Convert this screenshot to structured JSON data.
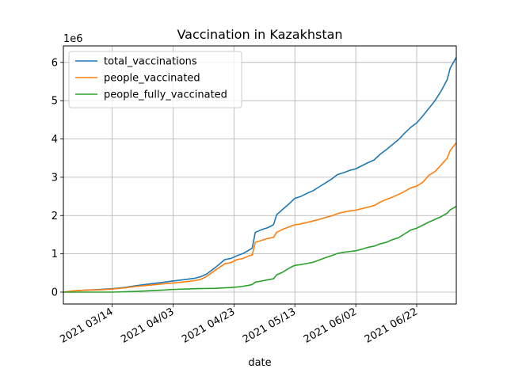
{
  "chart_data": {
    "type": "line",
    "title": "Vaccination in Kazakhstan",
    "xlabel": "date",
    "ylabel": "",
    "y_multiplier": "1e6",
    "x_tick_labels": [
      "2021 03/14",
      "2021 04/03",
      "2021 04/23",
      "2021 05/13",
      "2021 06/02",
      "2021 06/22"
    ],
    "x_ticks": [
      "2021-03-14",
      "2021-04-03",
      "2021-04-23",
      "2021-05-13",
      "2021-06-02",
      "2021-06-22"
    ],
    "xlim": [
      "2021-02-26",
      "2021-07-05"
    ],
    "y_ticks": [
      0,
      1,
      2,
      3,
      4,
      5,
      6
    ],
    "ylim": [
      -0.31,
      6.43
    ],
    "grid": true,
    "legend_position": "upper-left",
    "series": [
      {
        "name": "total_vaccinations",
        "color": "#1f77b4",
        "points": [
          [
            "2021-02-26",
            0.0
          ],
          [
            "2021-03-01",
            0.03
          ],
          [
            "2021-03-05",
            0.05
          ],
          [
            "2021-03-10",
            0.07
          ],
          [
            "2021-03-14",
            0.09
          ],
          [
            "2021-03-18",
            0.12
          ],
          [
            "2021-03-22",
            0.17
          ],
          [
            "2021-03-26",
            0.21
          ],
          [
            "2021-03-30",
            0.25
          ],
          [
            "2021-04-03",
            0.29
          ],
          [
            "2021-04-07",
            0.33
          ],
          [
            "2021-04-10",
            0.36
          ],
          [
            "2021-04-12",
            0.4
          ],
          [
            "2021-04-14",
            0.47
          ],
          [
            "2021-04-17",
            0.65
          ],
          [
            "2021-04-20",
            0.85
          ],
          [
            "2021-04-22",
            0.88
          ],
          [
            "2021-04-24",
            0.95
          ],
          [
            "2021-04-26",
            1.01
          ],
          [
            "2021-04-28",
            1.1
          ],
          [
            "2021-04-29",
            1.15
          ],
          [
            "2021-04-30",
            1.56
          ],
          [
            "2021-05-02",
            1.63
          ],
          [
            "2021-05-04",
            1.68
          ],
          [
            "2021-05-06",
            1.76
          ],
          [
            "2021-05-07",
            2.02
          ],
          [
            "2021-05-09",
            2.16
          ],
          [
            "2021-05-11",
            2.3
          ],
          [
            "2021-05-13",
            2.45
          ],
          [
            "2021-05-15",
            2.5
          ],
          [
            "2021-05-17",
            2.58
          ],
          [
            "2021-05-19",
            2.65
          ],
          [
            "2021-05-21",
            2.75
          ],
          [
            "2021-05-23",
            2.85
          ],
          [
            "2021-05-25",
            2.95
          ],
          [
            "2021-05-27",
            3.07
          ],
          [
            "2021-05-29",
            3.12
          ],
          [
            "2021-05-31",
            3.18
          ],
          [
            "2021-06-02",
            3.22
          ],
          [
            "2021-06-04",
            3.3
          ],
          [
            "2021-06-06",
            3.38
          ],
          [
            "2021-06-08",
            3.45
          ],
          [
            "2021-06-10",
            3.6
          ],
          [
            "2021-06-12",
            3.72
          ],
          [
            "2021-06-14",
            3.85
          ],
          [
            "2021-06-16",
            3.98
          ],
          [
            "2021-06-18",
            4.15
          ],
          [
            "2021-06-20",
            4.3
          ],
          [
            "2021-06-22",
            4.42
          ],
          [
            "2021-06-24",
            4.6
          ],
          [
            "2021-06-26",
            4.8
          ],
          [
            "2021-06-28",
            5.0
          ],
          [
            "2021-06-30",
            5.25
          ],
          [
            "2021-07-02",
            5.55
          ],
          [
            "2021-07-03",
            5.85
          ],
          [
            "2021-07-05",
            6.13
          ]
        ]
      },
      {
        "name": "people_vaccinated",
        "color": "#ff7f0e",
        "points": [
          [
            "2021-02-26",
            0.0
          ],
          [
            "2021-03-01",
            0.03
          ],
          [
            "2021-03-05",
            0.05
          ],
          [
            "2021-03-10",
            0.06
          ],
          [
            "2021-03-14",
            0.08
          ],
          [
            "2021-03-18",
            0.11
          ],
          [
            "2021-03-22",
            0.15
          ],
          [
            "2021-03-26",
            0.18
          ],
          [
            "2021-03-30",
            0.21
          ],
          [
            "2021-04-03",
            0.24
          ],
          [
            "2021-04-07",
            0.27
          ],
          [
            "2021-04-10",
            0.3
          ],
          [
            "2021-04-12",
            0.33
          ],
          [
            "2021-04-14",
            0.41
          ],
          [
            "2021-04-17",
            0.58
          ],
          [
            "2021-04-20",
            0.74
          ],
          [
            "2021-04-22",
            0.77
          ],
          [
            "2021-04-24",
            0.85
          ],
          [
            "2021-04-26",
            0.88
          ],
          [
            "2021-04-28",
            0.95
          ],
          [
            "2021-04-29",
            0.97
          ],
          [
            "2021-04-30",
            1.3
          ],
          [
            "2021-05-02",
            1.35
          ],
          [
            "2021-05-04",
            1.4
          ],
          [
            "2021-05-06",
            1.43
          ],
          [
            "2021-05-07",
            1.56
          ],
          [
            "2021-05-09",
            1.64
          ],
          [
            "2021-05-11",
            1.7
          ],
          [
            "2021-05-13",
            1.76
          ],
          [
            "2021-05-15",
            1.78
          ],
          [
            "2021-05-17",
            1.82
          ],
          [
            "2021-05-19",
            1.86
          ],
          [
            "2021-05-21",
            1.9
          ],
          [
            "2021-05-23",
            1.95
          ],
          [
            "2021-05-25",
            1.99
          ],
          [
            "2021-05-27",
            2.05
          ],
          [
            "2021-05-29",
            2.09
          ],
          [
            "2021-05-31",
            2.12
          ],
          [
            "2021-06-02",
            2.14
          ],
          [
            "2021-06-04",
            2.18
          ],
          [
            "2021-06-06",
            2.22
          ],
          [
            "2021-06-08",
            2.26
          ],
          [
            "2021-06-10",
            2.35
          ],
          [
            "2021-06-12",
            2.42
          ],
          [
            "2021-06-14",
            2.48
          ],
          [
            "2021-06-16",
            2.55
          ],
          [
            "2021-06-18",
            2.63
          ],
          [
            "2021-06-20",
            2.72
          ],
          [
            "2021-06-22",
            2.77
          ],
          [
            "2021-06-24",
            2.87
          ],
          [
            "2021-06-26",
            3.05
          ],
          [
            "2021-06-28",
            3.15
          ],
          [
            "2021-06-30",
            3.32
          ],
          [
            "2021-07-02",
            3.5
          ],
          [
            "2021-07-03",
            3.7
          ],
          [
            "2021-07-05",
            3.9
          ]
        ]
      },
      {
        "name": "people_fully_vaccinated",
        "color": "#2ca02c",
        "points": [
          [
            "2021-02-26",
            0.0
          ],
          [
            "2021-03-05",
            0.0
          ],
          [
            "2021-03-14",
            0.0
          ],
          [
            "2021-03-22",
            0.02
          ],
          [
            "2021-03-30",
            0.05
          ],
          [
            "2021-04-03",
            0.07
          ],
          [
            "2021-04-10",
            0.09
          ],
          [
            "2021-04-17",
            0.1
          ],
          [
            "2021-04-22",
            0.12
          ],
          [
            "2021-04-25",
            0.14
          ],
          [
            "2021-04-28",
            0.18
          ],
          [
            "2021-04-29",
            0.2
          ],
          [
            "2021-04-30",
            0.26
          ],
          [
            "2021-05-02",
            0.29
          ],
          [
            "2021-05-04",
            0.32
          ],
          [
            "2021-05-06",
            0.35
          ],
          [
            "2021-05-07",
            0.45
          ],
          [
            "2021-05-09",
            0.52
          ],
          [
            "2021-05-11",
            0.62
          ],
          [
            "2021-05-13",
            0.7
          ],
          [
            "2021-05-15",
            0.72
          ],
          [
            "2021-05-17",
            0.75
          ],
          [
            "2021-05-19",
            0.78
          ],
          [
            "2021-05-21",
            0.84
          ],
          [
            "2021-05-23",
            0.9
          ],
          [
            "2021-05-25",
            0.95
          ],
          [
            "2021-05-27",
            1.01
          ],
          [
            "2021-05-29",
            1.04
          ],
          [
            "2021-05-31",
            1.06
          ],
          [
            "2021-06-02",
            1.08
          ],
          [
            "2021-06-04",
            1.12
          ],
          [
            "2021-06-06",
            1.17
          ],
          [
            "2021-06-08",
            1.2
          ],
          [
            "2021-06-10",
            1.26
          ],
          [
            "2021-06-12",
            1.3
          ],
          [
            "2021-06-14",
            1.37
          ],
          [
            "2021-06-16",
            1.42
          ],
          [
            "2021-06-18",
            1.52
          ],
          [
            "2021-06-20",
            1.62
          ],
          [
            "2021-06-22",
            1.67
          ],
          [
            "2021-06-24",
            1.75
          ],
          [
            "2021-06-26",
            1.83
          ],
          [
            "2021-06-28",
            1.9
          ],
          [
            "2021-06-30",
            1.97
          ],
          [
            "2021-07-02",
            2.06
          ],
          [
            "2021-07-03",
            2.15
          ],
          [
            "2021-07-05",
            2.24
          ]
        ]
      }
    ]
  }
}
